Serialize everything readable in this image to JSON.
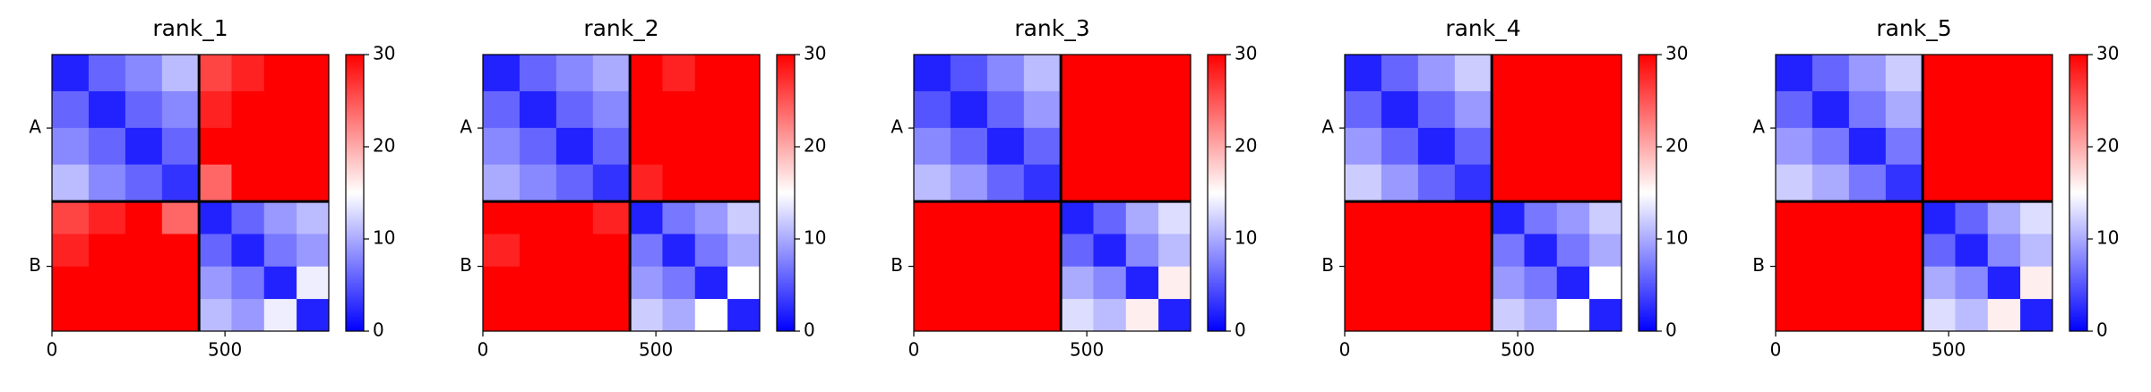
{
  "chart_data": [
    {
      "type": "heatmap",
      "title": "rank_1",
      "xlim": [
        0,
        800
      ],
      "ylim": [
        800,
        0
      ],
      "xticks": [
        0,
        500
      ],
      "chains": [
        {
          "name": "A",
          "range": [
            0,
            425
          ]
        },
        {
          "name": "B",
          "range": [
            425,
            800
          ]
        }
      ],
      "edges": [
        0,
        106,
        212,
        318,
        425,
        519,
        613,
        707,
        800
      ],
      "values": [
        [
          2,
          6,
          8,
          11,
          26,
          28,
          30,
          30
        ],
        [
          6,
          2,
          6,
          8,
          28,
          30,
          30,
          30
        ],
        [
          8,
          6,
          2,
          6,
          30,
          30,
          30,
          30
        ],
        [
          11,
          8,
          6,
          3,
          24,
          30,
          30,
          30
        ],
        [
          26,
          28,
          30,
          24,
          2,
          6,
          9,
          11
        ],
        [
          28,
          30,
          30,
          30,
          6,
          2,
          7,
          9
        ],
        [
          30,
          30,
          30,
          30,
          9,
          7,
          2,
          14
        ],
        [
          30,
          30,
          30,
          30,
          11,
          9,
          14,
          2
        ]
      ],
      "clim": [
        0,
        30
      ],
      "cticks": [
        0,
        10,
        20,
        30
      ]
    },
    {
      "type": "heatmap",
      "title": "rank_2",
      "xlim": [
        0,
        800
      ],
      "ylim": [
        800,
        0
      ],
      "xticks": [
        0,
        500
      ],
      "chains": [
        {
          "name": "A",
          "range": [
            0,
            425
          ]
        },
        {
          "name": "B",
          "range": [
            425,
            800
          ]
        }
      ],
      "edges": [
        0,
        106,
        212,
        318,
        425,
        519,
        613,
        707,
        800
      ],
      "values": [
        [
          2,
          6,
          8,
          10,
          30,
          28,
          32,
          34
        ],
        [
          6,
          2,
          6,
          8,
          32,
          30,
          34,
          34
        ],
        [
          8,
          6,
          2,
          6,
          34,
          32,
          34,
          36
        ],
        [
          10,
          8,
          6,
          3,
          28,
          30,
          32,
          34
        ],
        [
          30,
          32,
          34,
          28,
          2,
          7,
          9,
          12
        ],
        [
          28,
          30,
          32,
          30,
          7,
          2,
          7,
          10
        ],
        [
          32,
          34,
          34,
          32,
          9,
          7,
          2,
          15
        ],
        [
          34,
          34,
          36,
          34,
          12,
          10,
          15,
          2
        ]
      ],
      "clim": [
        0,
        30
      ],
      "cticks": [
        0,
        10,
        20,
        30
      ]
    },
    {
      "type": "heatmap",
      "title": "rank_3",
      "xlim": [
        0,
        800
      ],
      "ylim": [
        800,
        0
      ],
      "xticks": [
        0,
        500
      ],
      "chains": [
        {
          "name": "A",
          "range": [
            0,
            425
          ]
        },
        {
          "name": "B",
          "range": [
            425,
            800
          ]
        }
      ],
      "edges": [
        0,
        106,
        212,
        318,
        425,
        519,
        613,
        707,
        800
      ],
      "values": [
        [
          2,
          5,
          8,
          11,
          32,
          30,
          34,
          36
        ],
        [
          5,
          2,
          6,
          9,
          34,
          32,
          36,
          36
        ],
        [
          8,
          6,
          2,
          6,
          36,
          34,
          36,
          38
        ],
        [
          11,
          9,
          6,
          3,
          30,
          32,
          34,
          36
        ],
        [
          32,
          34,
          36,
          30,
          2,
          6,
          10,
          13
        ],
        [
          30,
          32,
          34,
          32,
          6,
          2,
          8,
          11
        ],
        [
          34,
          36,
          36,
          34,
          10,
          8,
          2,
          16
        ],
        [
          36,
          36,
          38,
          36,
          13,
          11,
          16,
          2
        ]
      ],
      "clim": [
        0,
        30
      ],
      "cticks": [
        0,
        10,
        20,
        30
      ]
    },
    {
      "type": "heatmap",
      "title": "rank_4",
      "xlim": [
        0,
        800
      ],
      "ylim": [
        800,
        0
      ],
      "xticks": [
        0,
        500
      ],
      "chains": [
        {
          "name": "A",
          "range": [
            0,
            425
          ]
        },
        {
          "name": "B",
          "range": [
            425,
            800
          ]
        }
      ],
      "edges": [
        0,
        106,
        212,
        318,
        425,
        519,
        613,
        707,
        800
      ],
      "values": [
        [
          2,
          6,
          9,
          12,
          32,
          30,
          34,
          36
        ],
        [
          6,
          2,
          6,
          9,
          34,
          32,
          36,
          36
        ],
        [
          9,
          6,
          2,
          6,
          36,
          34,
          36,
          38
        ],
        [
          12,
          9,
          6,
          3,
          30,
          32,
          34,
          36
        ],
        [
          32,
          34,
          36,
          30,
          2,
          7,
          9,
          12
        ],
        [
          30,
          32,
          34,
          32,
          7,
          2,
          7,
          10
        ],
        [
          34,
          36,
          36,
          34,
          9,
          7,
          2,
          15
        ],
        [
          36,
          36,
          38,
          36,
          12,
          10,
          15,
          2
        ]
      ],
      "clim": [
        0,
        30
      ],
      "cticks": [
        0,
        10,
        20,
        30
      ]
    },
    {
      "type": "heatmap",
      "title": "rank_5",
      "xlim": [
        0,
        800
      ],
      "ylim": [
        800,
        0
      ],
      "xticks": [
        0,
        500
      ],
      "chains": [
        {
          "name": "A",
          "range": [
            0,
            425
          ]
        },
        {
          "name": "B",
          "range": [
            425,
            800
          ]
        }
      ],
      "edges": [
        0,
        106,
        212,
        318,
        425,
        519,
        613,
        707,
        800
      ],
      "values": [
        [
          2,
          6,
          9,
          12,
          34,
          32,
          36,
          38
        ],
        [
          6,
          2,
          7,
          10,
          36,
          34,
          38,
          38
        ],
        [
          9,
          7,
          2,
          7,
          38,
          36,
          38,
          40
        ],
        [
          12,
          10,
          7,
          3,
          32,
          34,
          36,
          38
        ],
        [
          34,
          36,
          38,
          32,
          2,
          6,
          10,
          13
        ],
        [
          32,
          34,
          36,
          34,
          6,
          2,
          8,
          11
        ],
        [
          36,
          38,
          38,
          36,
          10,
          8,
          2,
          16
        ],
        [
          38,
          38,
          40,
          38,
          13,
          11,
          16,
          2
        ]
      ],
      "clim": [
        0,
        30
      ],
      "cticks": [
        0,
        10,
        20,
        30
      ]
    }
  ]
}
